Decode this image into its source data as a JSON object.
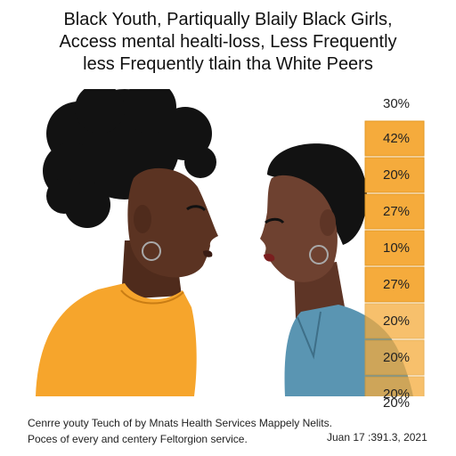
{
  "title": {
    "line1": "Black Youth, Partiqually Blaily Black Girls,",
    "line2": "Access mental healti-loss, Less Frequently",
    "line3": "less Frequently tlain tha White Peers"
  },
  "bars": {
    "top_label": "30%",
    "cells": [
      {
        "label": "42%",
        "value": 42
      },
      {
        "label": "20%",
        "value": 20
      },
      {
        "label": "27%",
        "value": 27
      },
      {
        "label": "10%",
        "value": 10
      },
      {
        "label": "27%",
        "value": 27
      },
      {
        "label": "20%",
        "value": 20
      },
      {
        "label": "20%",
        "value": 20
      },
      {
        "label": "20%",
        "value": 20
      }
    ],
    "bottom_label": "20%",
    "colors": {
      "cell": "#f5ab3c",
      "cell_border": "#e39a25"
    }
  },
  "colors": {
    "left_shirt": "#f6a52c",
    "right_shirt": "#5a95b2",
    "skin_left": "#5b3322",
    "skin_right": "#6e4130",
    "hair": "#121212"
  },
  "footer": {
    "line1": "Cenrre youty Teuch of by Mnats Health Services Mappely Nelits.",
    "line2": "Poces of every and centery Feltorgion service.",
    "date": "Juan 17 :391.3, 2021"
  }
}
